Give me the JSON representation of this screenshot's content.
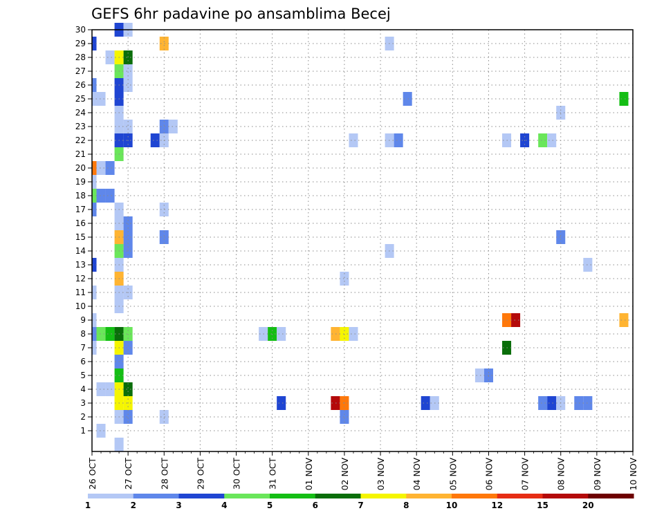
{
  "chart_data": {
    "type": "heatmap",
    "title": "GEFS 6hr padavine po ansamblima Becej",
    "x_ticks": [
      "26 OCT",
      "27 OCT",
      "28 OCT",
      "29 OCT",
      "30 OCT",
      "31 OCT",
      "01 NOV",
      "02 NOV",
      "03 NOV",
      "04 NOV",
      "05 NOV",
      "06 NOV",
      "07 NOV",
      "08 NOV",
      "09 NOV",
      "10 NOV"
    ],
    "y_ticks": [
      "1",
      "2",
      "3",
      "4",
      "5",
      "6",
      "7",
      "8",
      "9",
      "10",
      "11",
      "12",
      "13",
      "14",
      "15",
      "16",
      "17",
      "18",
      "19",
      "20",
      "21",
      "22",
      "23",
      "24",
      "25",
      "26",
      "27",
      "28",
      "29",
      "30"
    ],
    "ylim": [
      0,
      30
    ],
    "grid": true,
    "colorbar": {
      "labels": [
        "1",
        "2",
        "3",
        "4",
        "5",
        "6",
        "7",
        "8",
        "10",
        "12",
        "15",
        "20"
      ],
      "colors": [
        "#b4c8f5",
        "#5f87ea",
        "#1f45d2",
        "#6ae65a",
        "#14be14",
        "#0a6e0a",
        "#f5f500",
        "#ffb432",
        "#ff780a",
        "#e62d14",
        "#b40a0a",
        "#6e0000"
      ]
    },
    "cells_note": "each cell: [day offset from 26 OCT 00Z, member, colour class index 0-11]",
    "cells": [
      [
        0.25,
        1,
        0
      ],
      [
        0.75,
        0,
        0
      ],
      [
        0.75,
        2,
        0
      ],
      [
        1.0,
        2,
        1
      ],
      [
        0.75,
        3,
        6
      ],
      [
        1.0,
        3,
        6
      ],
      [
        0.75,
        4,
        6
      ],
      [
        1.0,
        4,
        5
      ],
      [
        0.25,
        4,
        0
      ],
      [
        0.5,
        4,
        0
      ],
      [
        0.75,
        5,
        4
      ],
      [
        0.75,
        6,
        1
      ],
      [
        0.0,
        7,
        0
      ],
      [
        0.75,
        7,
        6
      ],
      [
        1.0,
        7,
        1
      ],
      [
        0.0,
        8,
        1
      ],
      [
        0.25,
        8,
        3
      ],
      [
        0.5,
        8,
        4
      ],
      [
        0.75,
        8,
        5
      ],
      [
        1.0,
        8,
        3
      ],
      [
        0.0,
        9,
        0
      ],
      [
        0.75,
        10,
        0
      ],
      [
        0.75,
        11,
        0
      ],
      [
        1.0,
        11,
        0
      ],
      [
        0.0,
        11,
        0
      ],
      [
        0.75,
        12,
        7
      ],
      [
        0.0,
        13,
        2
      ],
      [
        0.75,
        13,
        0
      ],
      [
        0.75,
        14,
        3
      ],
      [
        1.0,
        14,
        1
      ],
      [
        0.75,
        15,
        7
      ],
      [
        1.0,
        15,
        1
      ],
      [
        0.75,
        16,
        0
      ],
      [
        1.0,
        16,
        1
      ],
      [
        0.0,
        17,
        1
      ],
      [
        0.75,
        17,
        0
      ],
      [
        0.0,
        18,
        3
      ],
      [
        0.25,
        18,
        1
      ],
      [
        0.5,
        18,
        1
      ],
      [
        0.0,
        19,
        0
      ],
      [
        0.0,
        20,
        8
      ],
      [
        0.25,
        20,
        0
      ],
      [
        0.5,
        20,
        1
      ],
      [
        0.75,
        21,
        3
      ],
      [
        0.75,
        22,
        2
      ],
      [
        1.0,
        22,
        2
      ],
      [
        0.75,
        23,
        0
      ],
      [
        1.0,
        23,
        0
      ],
      [
        0.75,
        24,
        0
      ],
      [
        0.0,
        25,
        0
      ],
      [
        0.25,
        25,
        0
      ],
      [
        0.75,
        25,
        2
      ],
      [
        0.0,
        26,
        1
      ],
      [
        0.75,
        26,
        2
      ],
      [
        1.0,
        26,
        0
      ],
      [
        0.75,
        27,
        3
      ],
      [
        1.0,
        27,
        0
      ],
      [
        0.5,
        28,
        0
      ],
      [
        0.75,
        28,
        6
      ],
      [
        1.0,
        28,
        5
      ],
      [
        0.0,
        29,
        2
      ],
      [
        0.75,
        30,
        2
      ],
      [
        1.0,
        30,
        0
      ],
      [
        2.0,
        2,
        0
      ],
      [
        2.0,
        23,
        1
      ],
      [
        2.25,
        23,
        0
      ],
      [
        1.75,
        22,
        2
      ],
      [
        2.0,
        22,
        0
      ],
      [
        2.0,
        17,
        0
      ],
      [
        2.0,
        15,
        1
      ],
      [
        2.0,
        29,
        7
      ],
      [
        4.75,
        8,
        0
      ],
      [
        5.0,
        8,
        4
      ],
      [
        5.25,
        8,
        0
      ],
      [
        5.25,
        3,
        2
      ],
      [
        6.75,
        8,
        7
      ],
      [
        7.0,
        8,
        6
      ],
      [
        7.25,
        8,
        0
      ],
      [
        7.25,
        22,
        0
      ],
      [
        7.0,
        12,
        0
      ],
      [
        6.75,
        3,
        10
      ],
      [
        7.0,
        3,
        8
      ],
      [
        7.0,
        2,
        1
      ],
      [
        8.25,
        22,
        0
      ],
      [
        8.5,
        22,
        1
      ],
      [
        8.25,
        29,
        0
      ],
      [
        8.75,
        25,
        1
      ],
      [
        8.25,
        14,
        0
      ],
      [
        9.25,
        3,
        2
      ],
      [
        9.5,
        3,
        0
      ],
      [
        10.75,
        5,
        0
      ],
      [
        11.0,
        5,
        1
      ],
      [
        11.5,
        9,
        8
      ],
      [
        11.75,
        9,
        10
      ],
      [
        11.5,
        7,
        5
      ],
      [
        11.5,
        22,
        0
      ],
      [
        12.0,
        22,
        2
      ],
      [
        12.5,
        22,
        3
      ],
      [
        12.75,
        22,
        0
      ],
      [
        12.5,
        3,
        1
      ],
      [
        12.75,
        3,
        2
      ],
      [
        13.0,
        3,
        0
      ],
      [
        13.5,
        3,
        1
      ],
      [
        13.75,
        3,
        1
      ],
      [
        13.0,
        15,
        1
      ],
      [
        13.0,
        24,
        0
      ],
      [
        13.75,
        13,
        0
      ],
      [
        14.75,
        25,
        4
      ],
      [
        14.75,
        9,
        7
      ]
    ]
  }
}
